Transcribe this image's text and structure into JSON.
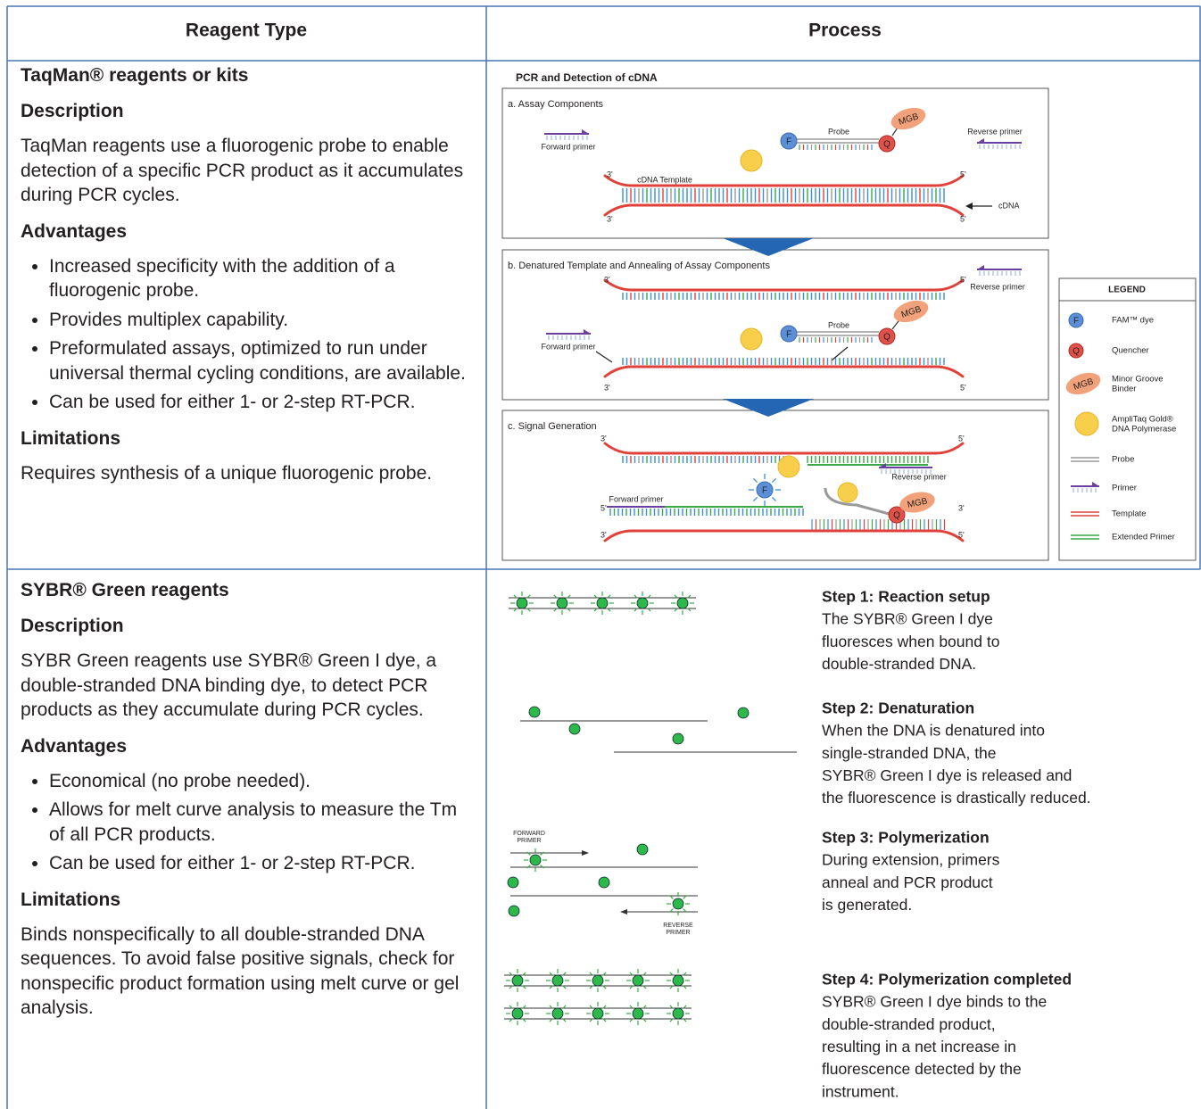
{
  "header": [
    "Reagent Type",
    "Process"
  ],
  "rows": [
    {
      "title": "TaqMan® reagents or kits",
      "description_heading": "Description",
      "description": "TaqMan reagents use a fluorogenic probe to enable detection of a specific PCR product as it accumulates during PCR cycles.",
      "advantages_heading": "Advantages",
      "advantages": [
        "Increased specificity with the addition of a fluorogenic probe.",
        "Provides multiplex capability.",
        "Preformulated assays, optimized to run under universal thermal cycling conditions, are available.",
        "Can be used for either 1- or 2-step RT-PCR."
      ],
      "limitations_heading": "Limitations",
      "limitations": "Requires synthesis of a unique fluorogenic probe."
    },
    {
      "title": "SYBR® Green reagents",
      "description_heading": "Description",
      "description": "SYBR Green reagents use SYBR® Green I dye, a double-stranded DNA binding dye, to detect PCR products as they accumulate during PCR cycles.",
      "advantages_heading": "Advantages",
      "advantages": [
        "Economical (no probe needed).",
        "Allows for melt curve analysis to measure the Tm of all PCR products.",
        "Can be used for either 1- or 2-step RT-PCR."
      ],
      "limitations_heading": "Limitations",
      "limitations": "Binds nonspecifically to all double-stranded DNA sequences. To avoid false positive signals, check for nonspecific product formation using melt curve or gel analysis."
    }
  ],
  "taqman": {
    "title": "PCR and Detection of cDNA",
    "panels": [
      "a. Assay Components",
      "b. Denatured Template and Annealing of Assay Components",
      "c. Signal Generation"
    ],
    "forward_primer": "Forward primer",
    "reverse_primer": "Reverse primer",
    "probe": "Probe",
    "mgb": "MGB",
    "f": "F",
    "q": "Q",
    "three_prime": "3'",
    "five_prime": "5'",
    "cdna_template": "cDNA Template",
    "cdna": "cDNA"
  },
  "legend": {
    "title": "LEGEND",
    "items": [
      [
        "FAM™ dye"
      ],
      [
        "Quencher"
      ],
      [
        "Minor Groove",
        "Binder"
      ],
      [
        "AmpliTaq Gold®",
        "DNA Polymerase"
      ],
      [
        "Probe"
      ],
      [
        "Primer"
      ],
      [
        "Template"
      ],
      [
        "Extended Primer"
      ]
    ]
  },
  "sybr": {
    "forward_primer": [
      "FORWARD",
      "PRIMER"
    ],
    "reverse_primer": [
      "REVERSE",
      "PRIMER"
    ],
    "steps": [
      {
        "title": "Step 1: Reaction setup",
        "lines": [
          "The SYBR® Green I dye",
          "fluoresces when bound to",
          "double-stranded DNA."
        ]
      },
      {
        "title": "Step 2: Denaturation",
        "lines": [
          "When the DNA is denatured into",
          "single-stranded DNA, the",
          "SYBR® Green I dye is released and",
          "the fluorescence is drastically reduced."
        ]
      },
      {
        "title": "Step 3: Polymerization",
        "lines": [
          "During extension, primers",
          "anneal and  PCR product",
          "is generated."
        ]
      },
      {
        "title": "Step 4: Polymerization completed",
        "lines": [
          "SYBR® Green I dye binds to the",
          "double-stranded product,",
          "resulting in  a net increase in",
          "fluorescence detected by the",
          "instrument."
        ]
      }
    ]
  }
}
